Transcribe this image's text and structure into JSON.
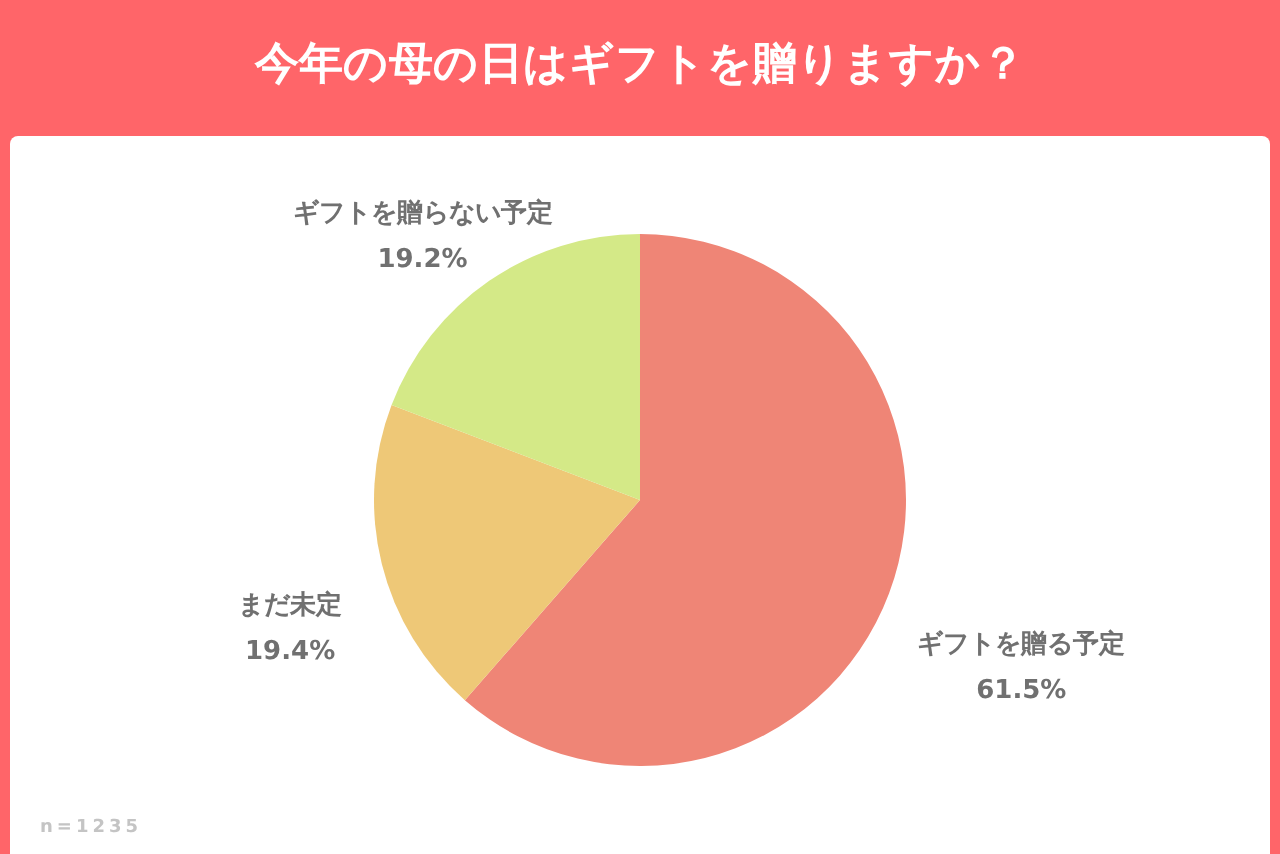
{
  "chart_data": {
    "type": "pie",
    "title": "今年の母の日はギフトを贈りますか？",
    "categories": [
      "ギフトを贈る予定",
      "まだ未定",
      "ギフトを贈らない予定"
    ],
    "values": [
      61.5,
      19.4,
      19.2
    ],
    "colors": [
      "#ef8576",
      "#eec877",
      "#d4e987"
    ],
    "value_labels": [
      "61.5%",
      "19.4%",
      "19.2%"
    ],
    "annotations": [
      "n=1235"
    ]
  }
}
